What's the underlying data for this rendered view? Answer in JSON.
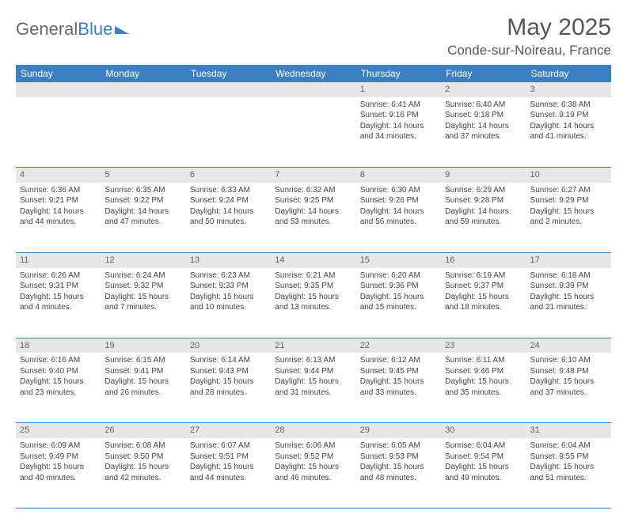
{
  "brand": {
    "part1": "General",
    "part2": "Blue"
  },
  "title": "May 2025",
  "location": "Conde-sur-Noireau, France",
  "colors": {
    "accent": "#3b7fc4",
    "header_gray": "#e7e7e7",
    "text": "#444444",
    "title_text": "#555555",
    "brand_gray": "#666666",
    "background": "#ffffff"
  },
  "day_names": [
    "Sunday",
    "Monday",
    "Tuesday",
    "Wednesday",
    "Thursday",
    "Friday",
    "Saturday"
  ],
  "weeks": [
    [
      {
        "n": "",
        "lines": [
          "",
          "",
          "",
          ""
        ]
      },
      {
        "n": "",
        "lines": [
          "",
          "",
          "",
          ""
        ]
      },
      {
        "n": "",
        "lines": [
          "",
          "",
          "",
          ""
        ]
      },
      {
        "n": "",
        "lines": [
          "",
          "",
          "",
          ""
        ]
      },
      {
        "n": "1",
        "lines": [
          "Sunrise: 6:41 AM",
          "Sunset: 9:16 PM",
          "Daylight: 14 hours",
          "and 34 minutes."
        ]
      },
      {
        "n": "2",
        "lines": [
          "Sunrise: 6:40 AM",
          "Sunset: 9:18 PM",
          "Daylight: 14 hours",
          "and 37 minutes."
        ]
      },
      {
        "n": "3",
        "lines": [
          "Sunrise: 6:38 AM",
          "Sunset: 9:19 PM",
          "Daylight: 14 hours",
          "and 41 minutes."
        ]
      }
    ],
    [
      {
        "n": "4",
        "lines": [
          "Sunrise: 6:36 AM",
          "Sunset: 9:21 PM",
          "Daylight: 14 hours",
          "and 44 minutes."
        ]
      },
      {
        "n": "5",
        "lines": [
          "Sunrise: 6:35 AM",
          "Sunset: 9:22 PM",
          "Daylight: 14 hours",
          "and 47 minutes."
        ]
      },
      {
        "n": "6",
        "lines": [
          "Sunrise: 6:33 AM",
          "Sunset: 9:24 PM",
          "Daylight: 14 hours",
          "and 50 minutes."
        ]
      },
      {
        "n": "7",
        "lines": [
          "Sunrise: 6:32 AM",
          "Sunset: 9:25 PM",
          "Daylight: 14 hours",
          "and 53 minutes."
        ]
      },
      {
        "n": "8",
        "lines": [
          "Sunrise: 6:30 AM",
          "Sunset: 9:26 PM",
          "Daylight: 14 hours",
          "and 56 minutes."
        ]
      },
      {
        "n": "9",
        "lines": [
          "Sunrise: 6:29 AM",
          "Sunset: 9:28 PM",
          "Daylight: 14 hours",
          "and 59 minutes."
        ]
      },
      {
        "n": "10",
        "lines": [
          "Sunrise: 6:27 AM",
          "Sunset: 9:29 PM",
          "Daylight: 15 hours",
          "and 2 minutes."
        ]
      }
    ],
    [
      {
        "n": "11",
        "lines": [
          "Sunrise: 6:26 AM",
          "Sunset: 9:31 PM",
          "Daylight: 15 hours",
          "and 4 minutes."
        ]
      },
      {
        "n": "12",
        "lines": [
          "Sunrise: 6:24 AM",
          "Sunset: 9:32 PM",
          "Daylight: 15 hours",
          "and 7 minutes."
        ]
      },
      {
        "n": "13",
        "lines": [
          "Sunrise: 6:23 AM",
          "Sunset: 9:33 PM",
          "Daylight: 15 hours",
          "and 10 minutes."
        ]
      },
      {
        "n": "14",
        "lines": [
          "Sunrise: 6:21 AM",
          "Sunset: 9:35 PM",
          "Daylight: 15 hours",
          "and 13 minutes."
        ]
      },
      {
        "n": "15",
        "lines": [
          "Sunrise: 6:20 AM",
          "Sunset: 9:36 PM",
          "Daylight: 15 hours",
          "and 15 minutes."
        ]
      },
      {
        "n": "16",
        "lines": [
          "Sunrise: 6:19 AM",
          "Sunset: 9:37 PM",
          "Daylight: 15 hours",
          "and 18 minutes."
        ]
      },
      {
        "n": "17",
        "lines": [
          "Sunrise: 6:18 AM",
          "Sunset: 9:39 PM",
          "Daylight: 15 hours",
          "and 21 minutes."
        ]
      }
    ],
    [
      {
        "n": "18",
        "lines": [
          "Sunrise: 6:16 AM",
          "Sunset: 9:40 PM",
          "Daylight: 15 hours",
          "and 23 minutes."
        ]
      },
      {
        "n": "19",
        "lines": [
          "Sunrise: 6:15 AM",
          "Sunset: 9:41 PM",
          "Daylight: 15 hours",
          "and 26 minutes."
        ]
      },
      {
        "n": "20",
        "lines": [
          "Sunrise: 6:14 AM",
          "Sunset: 9:43 PM",
          "Daylight: 15 hours",
          "and 28 minutes."
        ]
      },
      {
        "n": "21",
        "lines": [
          "Sunrise: 6:13 AM",
          "Sunset: 9:44 PM",
          "Daylight: 15 hours",
          "and 31 minutes."
        ]
      },
      {
        "n": "22",
        "lines": [
          "Sunrise: 6:12 AM",
          "Sunset: 9:45 PM",
          "Daylight: 15 hours",
          "and 33 minutes."
        ]
      },
      {
        "n": "23",
        "lines": [
          "Sunrise: 6:11 AM",
          "Sunset: 9:46 PM",
          "Daylight: 15 hours",
          "and 35 minutes."
        ]
      },
      {
        "n": "24",
        "lines": [
          "Sunrise: 6:10 AM",
          "Sunset: 9:48 PM",
          "Daylight: 15 hours",
          "and 37 minutes."
        ]
      }
    ],
    [
      {
        "n": "25",
        "lines": [
          "Sunrise: 6:09 AM",
          "Sunset: 9:49 PM",
          "Daylight: 15 hours",
          "and 40 minutes."
        ]
      },
      {
        "n": "26",
        "lines": [
          "Sunrise: 6:08 AM",
          "Sunset: 9:50 PM",
          "Daylight: 15 hours",
          "and 42 minutes."
        ]
      },
      {
        "n": "27",
        "lines": [
          "Sunrise: 6:07 AM",
          "Sunset: 9:51 PM",
          "Daylight: 15 hours",
          "and 44 minutes."
        ]
      },
      {
        "n": "28",
        "lines": [
          "Sunrise: 6:06 AM",
          "Sunset: 9:52 PM",
          "Daylight: 15 hours",
          "and 46 minutes."
        ]
      },
      {
        "n": "29",
        "lines": [
          "Sunrise: 6:05 AM",
          "Sunset: 9:53 PM",
          "Daylight: 15 hours",
          "and 48 minutes."
        ]
      },
      {
        "n": "30",
        "lines": [
          "Sunrise: 6:04 AM",
          "Sunset: 9:54 PM",
          "Daylight: 15 hours",
          "and 49 minutes."
        ]
      },
      {
        "n": "31",
        "lines": [
          "Sunrise: 6:04 AM",
          "Sunset: 9:55 PM",
          "Daylight: 15 hours",
          "and 51 minutes."
        ]
      }
    ]
  ]
}
